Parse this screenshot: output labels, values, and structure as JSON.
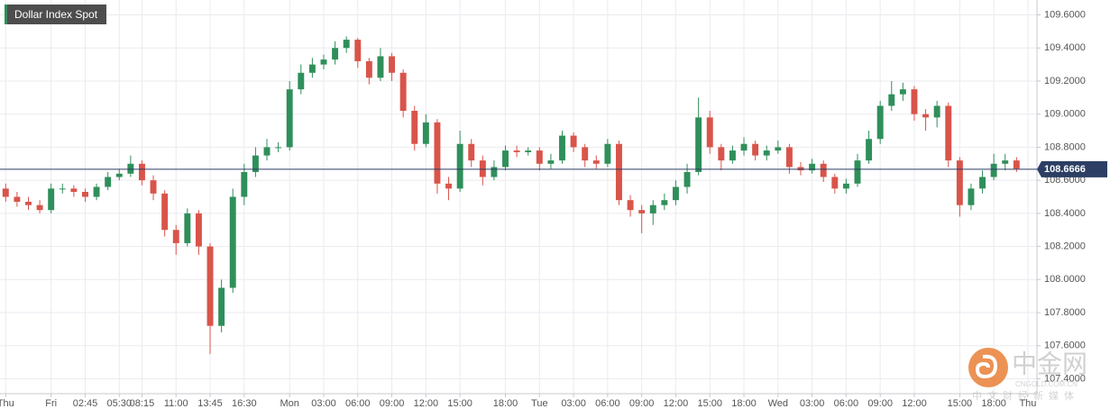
{
  "chart_data": {
    "type": "candlestick",
    "title": "Dollar Index Spot",
    "up_color": "#2f8f5b",
    "down_color": "#d9544a",
    "grid": true,
    "xlim": [
      -0.5,
      90.8
    ],
    "xticks": [
      {
        "value": 0,
        "label": "Thu"
      },
      {
        "value": 4,
        "label": "Fri"
      },
      {
        "value": 7,
        "label": "02:45"
      },
      {
        "value": 10,
        "label": "05:30"
      },
      {
        "value": 12,
        "label": "08:15"
      },
      {
        "value": 15,
        "label": "11:00"
      },
      {
        "value": 18,
        "label": "13:45"
      },
      {
        "value": 21,
        "label": "16:30"
      },
      {
        "value": 25,
        "label": "Mon"
      },
      {
        "value": 28,
        "label": "03:00"
      },
      {
        "value": 31,
        "label": "06:00"
      },
      {
        "value": 34,
        "label": "09:00"
      },
      {
        "value": 37,
        "label": "12:00"
      },
      {
        "value": 40,
        "label": "15:00"
      },
      {
        "value": 44,
        "label": "18:00"
      },
      {
        "value": 47,
        "label": "Tue"
      },
      {
        "value": 50,
        "label": "03:00"
      },
      {
        "value": 53,
        "label": "06:00"
      },
      {
        "value": 56,
        "label": "09:00"
      },
      {
        "value": 59,
        "label": "12:00"
      },
      {
        "value": 62,
        "label": "15:00"
      },
      {
        "value": 65,
        "label": "18:00"
      },
      {
        "value": 68,
        "label": "Wed"
      },
      {
        "value": 71,
        "label": "03:00"
      },
      {
        "value": 74,
        "label": "06:00"
      },
      {
        "value": 77,
        "label": "09:00"
      },
      {
        "value": 80,
        "label": "12:00"
      },
      {
        "value": 84,
        "label": "15:00"
      },
      {
        "value": 87,
        "label": "18:00"
      },
      {
        "value": 90,
        "label": "Thu"
      }
    ],
    "ylim": [
      107.31,
      109.69
    ],
    "yticks": [
      {
        "value": 107.4,
        "label": "107.4000"
      },
      {
        "value": 107.6,
        "label": "107.6000"
      },
      {
        "value": 107.8,
        "label": "107.8000"
      },
      {
        "value": 108.0,
        "label": "108.0000"
      },
      {
        "value": 108.2,
        "label": "108.2000"
      },
      {
        "value": 108.4,
        "label": "108.4000"
      },
      {
        "value": 108.6,
        "label": "108.6000"
      },
      {
        "value": 108.8,
        "label": "108.8000"
      },
      {
        "value": 109.0,
        "label": "109.0000"
      },
      {
        "value": 109.2,
        "label": "109.2000"
      },
      {
        "value": 109.4,
        "label": "109.4000"
      },
      {
        "value": 109.6,
        "label": "109.6000"
      }
    ],
    "open": [
      108.55,
      108.5,
      108.47,
      108.45,
      108.42,
      108.55,
      108.55,
      108.53,
      108.5,
      108.56,
      108.62,
      108.64,
      108.7,
      108.6,
      108.52,
      108.3,
      108.22,
      108.4,
      108.2,
      107.72,
      107.95,
      108.5,
      108.65,
      108.75,
      108.8,
      108.8,
      109.15,
      109.25,
      109.3,
      109.33,
      109.4,
      109.45,
      109.32,
      109.22,
      109.35,
      109.25,
      109.02,
      108.82,
      108.95,
      108.58,
      108.55,
      108.82,
      108.72,
      108.62,
      108.68,
      108.78,
      108.77,
      108.78,
      108.7,
      108.72,
      108.87,
      108.8,
      108.72,
      108.7,
      108.82,
      108.48,
      108.42,
      108.4,
      108.45,
      108.48,
      108.56,
      108.65,
      108.98,
      108.8,
      108.72,
      108.78,
      108.82,
      108.75,
      108.78,
      108.8,
      108.68,
      108.66,
      108.7,
      108.62,
      108.55,
      108.58,
      108.72,
      108.85,
      109.05,
      109.12,
      109.15,
      109.0,
      108.98,
      109.05,
      108.72,
      108.45,
      108.55,
      108.62,
      108.7,
      108.72
    ],
    "high": [
      108.58,
      108.53,
      108.5,
      108.48,
      108.58,
      108.58,
      108.57,
      108.55,
      108.58,
      108.65,
      108.67,
      108.75,
      108.72,
      108.63,
      108.54,
      108.33,
      108.43,
      108.42,
      108.22,
      108.0,
      108.55,
      108.7,
      108.8,
      108.85,
      108.83,
      109.2,
      109.3,
      109.34,
      109.36,
      109.44,
      109.47,
      109.46,
      109.34,
      109.4,
      109.37,
      109.27,
      109.05,
      109.0,
      108.97,
      108.62,
      108.9,
      108.85,
      108.75,
      108.72,
      108.81,
      108.81,
      108.8,
      108.8,
      108.76,
      108.9,
      108.89,
      108.82,
      108.75,
      108.85,
      108.84,
      108.51,
      108.45,
      108.48,
      108.52,
      108.6,
      108.7,
      109.1,
      109.02,
      108.82,
      108.81,
      108.86,
      108.84,
      108.81,
      108.84,
      108.82,
      108.71,
      108.73,
      108.72,
      108.64,
      108.61,
      108.76,
      108.9,
      109.08,
      109.2,
      109.19,
      109.17,
      109.03,
      109.08,
      109.07,
      108.74,
      108.58,
      108.66,
      108.76,
      108.76,
      108.74
    ],
    "low": [
      108.47,
      108.44,
      108.42,
      108.4,
      108.4,
      108.52,
      108.5,
      108.47,
      108.48,
      108.54,
      108.6,
      108.62,
      108.57,
      108.48,
      108.26,
      108.15,
      108.2,
      108.15,
      107.55,
      107.68,
      107.92,
      108.45,
      108.62,
      108.72,
      108.77,
      108.78,
      109.12,
      109.22,
      109.27,
      109.3,
      109.37,
      109.28,
      109.18,
      109.2,
      109.2,
      108.98,
      108.78,
      108.8,
      108.52,
      108.48,
      108.53,
      108.68,
      108.57,
      108.6,
      108.66,
      108.74,
      108.75,
      108.66,
      108.67,
      108.7,
      108.77,
      108.68,
      108.67,
      108.68,
      108.45,
      108.38,
      108.28,
      108.33,
      108.42,
      108.45,
      108.52,
      108.63,
      108.76,
      108.66,
      108.7,
      108.75,
      108.72,
      108.72,
      108.76,
      108.64,
      108.63,
      108.64,
      108.59,
      108.52,
      108.52,
      108.56,
      108.7,
      108.82,
      109.02,
      109.08,
      108.96,
      108.9,
      108.92,
      108.68,
      108.38,
      108.42,
      108.52,
      108.6,
      108.66,
      108.65
    ],
    "close": [
      108.5,
      108.47,
      108.45,
      108.42,
      108.55,
      108.55,
      108.53,
      108.5,
      108.56,
      108.62,
      108.64,
      108.7,
      108.6,
      108.52,
      108.3,
      108.22,
      108.4,
      108.2,
      107.72,
      107.95,
      108.5,
      108.65,
      108.75,
      108.8,
      108.8,
      109.15,
      109.25,
      109.3,
      109.33,
      109.4,
      109.45,
      109.32,
      109.22,
      109.35,
      109.25,
      109.02,
      108.82,
      108.95,
      108.58,
      108.55,
      108.82,
      108.72,
      108.62,
      108.68,
      108.78,
      108.77,
      108.78,
      108.7,
      108.72,
      108.87,
      108.8,
      108.72,
      108.7,
      108.82,
      108.48,
      108.42,
      108.4,
      108.45,
      108.48,
      108.56,
      108.65,
      108.98,
      108.8,
      108.72,
      108.78,
      108.82,
      108.75,
      108.78,
      108.8,
      108.68,
      108.66,
      108.7,
      108.62,
      108.55,
      108.58,
      108.72,
      108.85,
      109.05,
      109.12,
      109.15,
      109.0,
      108.98,
      109.05,
      108.72,
      108.45,
      108.55,
      108.62,
      108.7,
      108.72,
      108.67
    ],
    "last_price": 108.6666,
    "last_price_color": "#2c3e63",
    "watermark": {
      "name": "中金网",
      "site": "CNGOLD.COM.CN",
      "slogan": "中文财经新媒体"
    }
  }
}
